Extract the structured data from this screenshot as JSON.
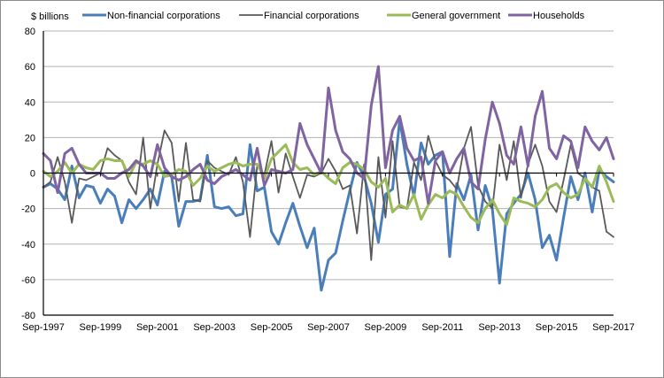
{
  "chart_data": {
    "type": "line",
    "title": "",
    "ylabel": "$ billions",
    "xlabel": "",
    "ylim": [
      -80,
      80
    ],
    "yticks": [
      80,
      60,
      40,
      20,
      0,
      -20,
      -40,
      -60,
      -80
    ],
    "ytick_labels": [
      "80",
      "60",
      "40",
      "20",
      "0",
      "-20",
      "-40",
      "-60",
      "-80"
    ],
    "xtick_labels": [
      "Sep-1997",
      "Sep-1999",
      "Sep-2001",
      "Sep-2003",
      "Sep-2005",
      "Sep-2007",
      "Sep-2009",
      "Sep-2011",
      "Sep-2013",
      "Sep-2015",
      "Sep-2017"
    ],
    "x_start": "Sep-1997",
    "x_end": "Sep-2017",
    "frequency": "quarterly",
    "grid": "horizontal",
    "legend_position": "top",
    "series": [
      {
        "name": "Non-financial corporations",
        "color": "#4a7ebb",
        "values": [
          -8,
          -6,
          -9,
          -15,
          4,
          -14,
          -7,
          -8,
          -17,
          -9,
          -13,
          -28,
          -15,
          -20,
          -15,
          -9,
          -18,
          1,
          -2,
          -30,
          -16,
          -16,
          -15,
          10,
          -19,
          -20,
          -19,
          -24,
          -23,
          16,
          -10,
          -8,
          -33,
          -40,
          -28,
          -17,
          -30,
          -42,
          -31,
          -66,
          -49,
          -45,
          -27,
          -10,
          6,
          -2,
          -17,
          -39,
          -12,
          -9,
          30,
          5,
          -13,
          17,
          5,
          10,
          12,
          -47,
          -6,
          -15,
          -1,
          -32,
          -7,
          -20,
          -62,
          -23,
          -17,
          -12,
          0,
          -15,
          -42,
          -35,
          -49,
          -25,
          -2,
          -15,
          0,
          -22,
          2,
          -2,
          -5
        ]
      },
      {
        "name": "Financial corporations",
        "color": "#595959",
        "values": [
          -8,
          -5,
          9,
          -5,
          -28,
          -3,
          -4,
          -2,
          0,
          14,
          10,
          7,
          -5,
          -12,
          20,
          -20,
          5,
          24,
          17,
          -16,
          17,
          -15,
          -16,
          7,
          3,
          1,
          -1,
          9,
          -5,
          -36,
          4,
          -1,
          18,
          -11,
          11,
          -2,
          -14,
          -1,
          -2,
          0,
          8,
          1,
          -9,
          -7,
          -34,
          5,
          -49,
          9,
          -25,
          18,
          -19,
          -20,
          6,
          -4,
          21,
          7,
          -1,
          -4,
          -9,
          14,
          26,
          -7,
          -16,
          -20,
          16,
          -4,
          18,
          -14,
          5,
          16,
          4,
          -16,
          -22,
          -4,
          16,
          0,
          -3,
          -8,
          -10,
          -33,
          -36
        ]
      },
      {
        "name": "General government",
        "color": "#9bbb59",
        "values": [
          1,
          -2,
          1,
          6,
          0,
          5,
          3,
          2,
          7,
          8,
          7,
          7,
          -2,
          6,
          5,
          7,
          5,
          -2,
          -1,
          2,
          1,
          -7,
          -3,
          4,
          1,
          3,
          5,
          6,
          4,
          5,
          5,
          -3,
          8,
          12,
          16,
          6,
          2,
          3,
          -1,
          1,
          -3,
          -6,
          3,
          6,
          5,
          2,
          -5,
          -8,
          -3,
          -22,
          -18,
          -20,
          -12,
          -26,
          -18,
          -12,
          -14,
          -10,
          -12,
          -19,
          -25,
          -28,
          -20,
          -15,
          -23,
          -29,
          -14,
          -16,
          -17,
          -19,
          -15,
          -8,
          -6,
          -11,
          -14,
          -12,
          -3,
          -8,
          4,
          -5,
          -16
        ]
      },
      {
        "name": "Households",
        "color": "#8064a2",
        "values": [
          11,
          7,
          -11,
          11,
          14,
          5,
          0,
          0,
          0,
          -3,
          -3,
          0,
          2,
          7,
          4,
          -2,
          16,
          3,
          -2,
          -4,
          -2,
          2,
          5,
          -4,
          -6,
          -2,
          0,
          2,
          -1,
          -4,
          14,
          -7,
          2,
          1,
          0,
          2,
          28,
          16,
          8,
          0,
          48,
          24,
          12,
          8,
          0,
          -3,
          38,
          60,
          3,
          24,
          32,
          14,
          7,
          9,
          -17,
          7,
          12,
          0,
          8,
          14,
          -5,
          -9,
          19,
          40,
          28,
          10,
          5,
          26,
          4,
          32,
          46,
          14,
          8,
          21,
          18,
          3,
          26,
          18,
          13,
          20,
          8
        ]
      }
    ]
  }
}
